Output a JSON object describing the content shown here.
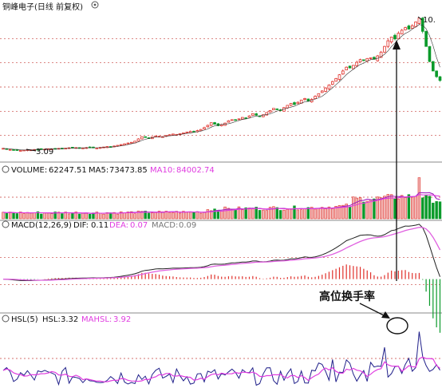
{
  "header": {
    "stock": "铜峰电子(日线 前复权)",
    "high_label": "10.",
    "low_label": "3.09"
  },
  "volume": {
    "label": "VOLUME:",
    "value": "62247.51",
    "ma5_label": "MA5:",
    "ma5_value": "73473.85",
    "ma10_label": "MA10:",
    "ma10_value": "84002.74"
  },
  "macd": {
    "label": "MACD(12,26,9)",
    "dif_label": "DIF:",
    "dif_value": "0.11",
    "dea_label": "DEA:",
    "dea_value": "0.07",
    "macd_label": "MACD:",
    "macd_value": "0.09"
  },
  "hsl": {
    "label": "HSL(5)",
    "hsl_label": "HSL:",
    "hsl_value": "3.32",
    "mahsl_label": "MAHSL:",
    "mahsl_value": "3.92"
  },
  "annotation": "高位换手率",
  "colors": {
    "up": "#e0302a",
    "down": "#0a9a2a",
    "grid": "#c8423c",
    "white_line": "#222222",
    "ma_purple": "#a020c0",
    "ma_magenta": "#e03ce0",
    "dea_pink": "#e060e0"
  },
  "chart_data": {
    "type": "candlestick",
    "price_range": [
      2.6,
      10.3
    ],
    "closes": [
      3.2,
      3.16,
      3.14,
      3.12,
      3.1,
      3.09,
      3.11,
      3.13,
      3.12,
      3.14,
      3.15,
      3.14,
      3.16,
      3.18,
      3.17,
      3.19,
      3.2,
      3.19,
      3.21,
      3.23,
      3.22,
      3.24,
      3.23,
      3.22,
      3.24,
      3.25,
      3.24,
      3.22,
      3.25,
      3.27,
      3.3,
      3.28,
      3.32,
      3.36,
      3.4,
      3.44,
      3.48,
      3.52,
      3.58,
      3.7,
      3.82,
      3.78,
      3.74,
      3.8,
      3.86,
      3.84,
      3.82,
      3.88,
      3.92,
      3.96,
      3.94,
      3.98,
      4.02,
      4.06,
      4.1,
      4.08,
      4.14,
      4.2,
      4.3,
      4.42,
      4.56,
      4.48,
      4.4,
      4.46,
      4.54,
      4.66,
      4.72,
      4.68,
      4.76,
      4.84,
      4.8,
      4.92,
      5.04,
      4.96,
      4.9,
      4.98,
      5.1,
      5.2,
      5.32,
      5.28,
      5.22,
      5.36,
      5.48,
      5.58,
      5.52,
      5.64,
      5.76,
      5.84,
      5.7,
      5.8,
      5.96,
      6.1,
      6.24,
      6.4,
      6.56,
      6.74,
      6.9,
      7.1,
      7.3,
      7.5,
      7.46,
      7.6,
      7.76,
      7.9,
      7.86,
      7.96,
      8.0,
      7.92,
      8.1,
      8.3,
      8.6,
      8.9,
      9.1,
      9.0,
      9.3,
      9.46,
      9.6,
      9.52,
      9.7,
      9.9,
      10.1,
      9.4,
      8.6,
      7.8,
      7.3,
      7.0,
      6.8
    ],
    "vol_ma_note": "MA5 purple, MA10 magenta",
    "macd_range": [
      -0.5,
      0.75
    ],
    "hsl_range": [
      0,
      12
    ]
  }
}
